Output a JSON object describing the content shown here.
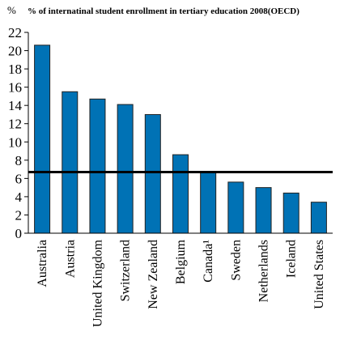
{
  "chart_data": {
    "type": "bar",
    "title": "% of internatinal student enrollment in tertiary education 2008(OECD)",
    "ylabel": "%",
    "xlabel": "",
    "categories": [
      "Australia",
      "Austria",
      "United Kingdom",
      "Switzerland",
      "New Zealand",
      "Belgium",
      "Canada¹",
      "Sweden",
      "Netherlands",
      "Iceland",
      "United States"
    ],
    "values": [
      20.6,
      15.5,
      14.7,
      14.1,
      13.0,
      8.6,
      6.7,
      5.6,
      5.0,
      4.4,
      3.4
    ],
    "ylim": [
      0,
      22
    ],
    "yticks": [
      0,
      2,
      4,
      6,
      8,
      10,
      12,
      14,
      16,
      18,
      20,
      22
    ],
    "reference_line": 6.7,
    "grid": false,
    "bar_color": "#0072b5",
    "bar_edge_color": "#222222"
  }
}
